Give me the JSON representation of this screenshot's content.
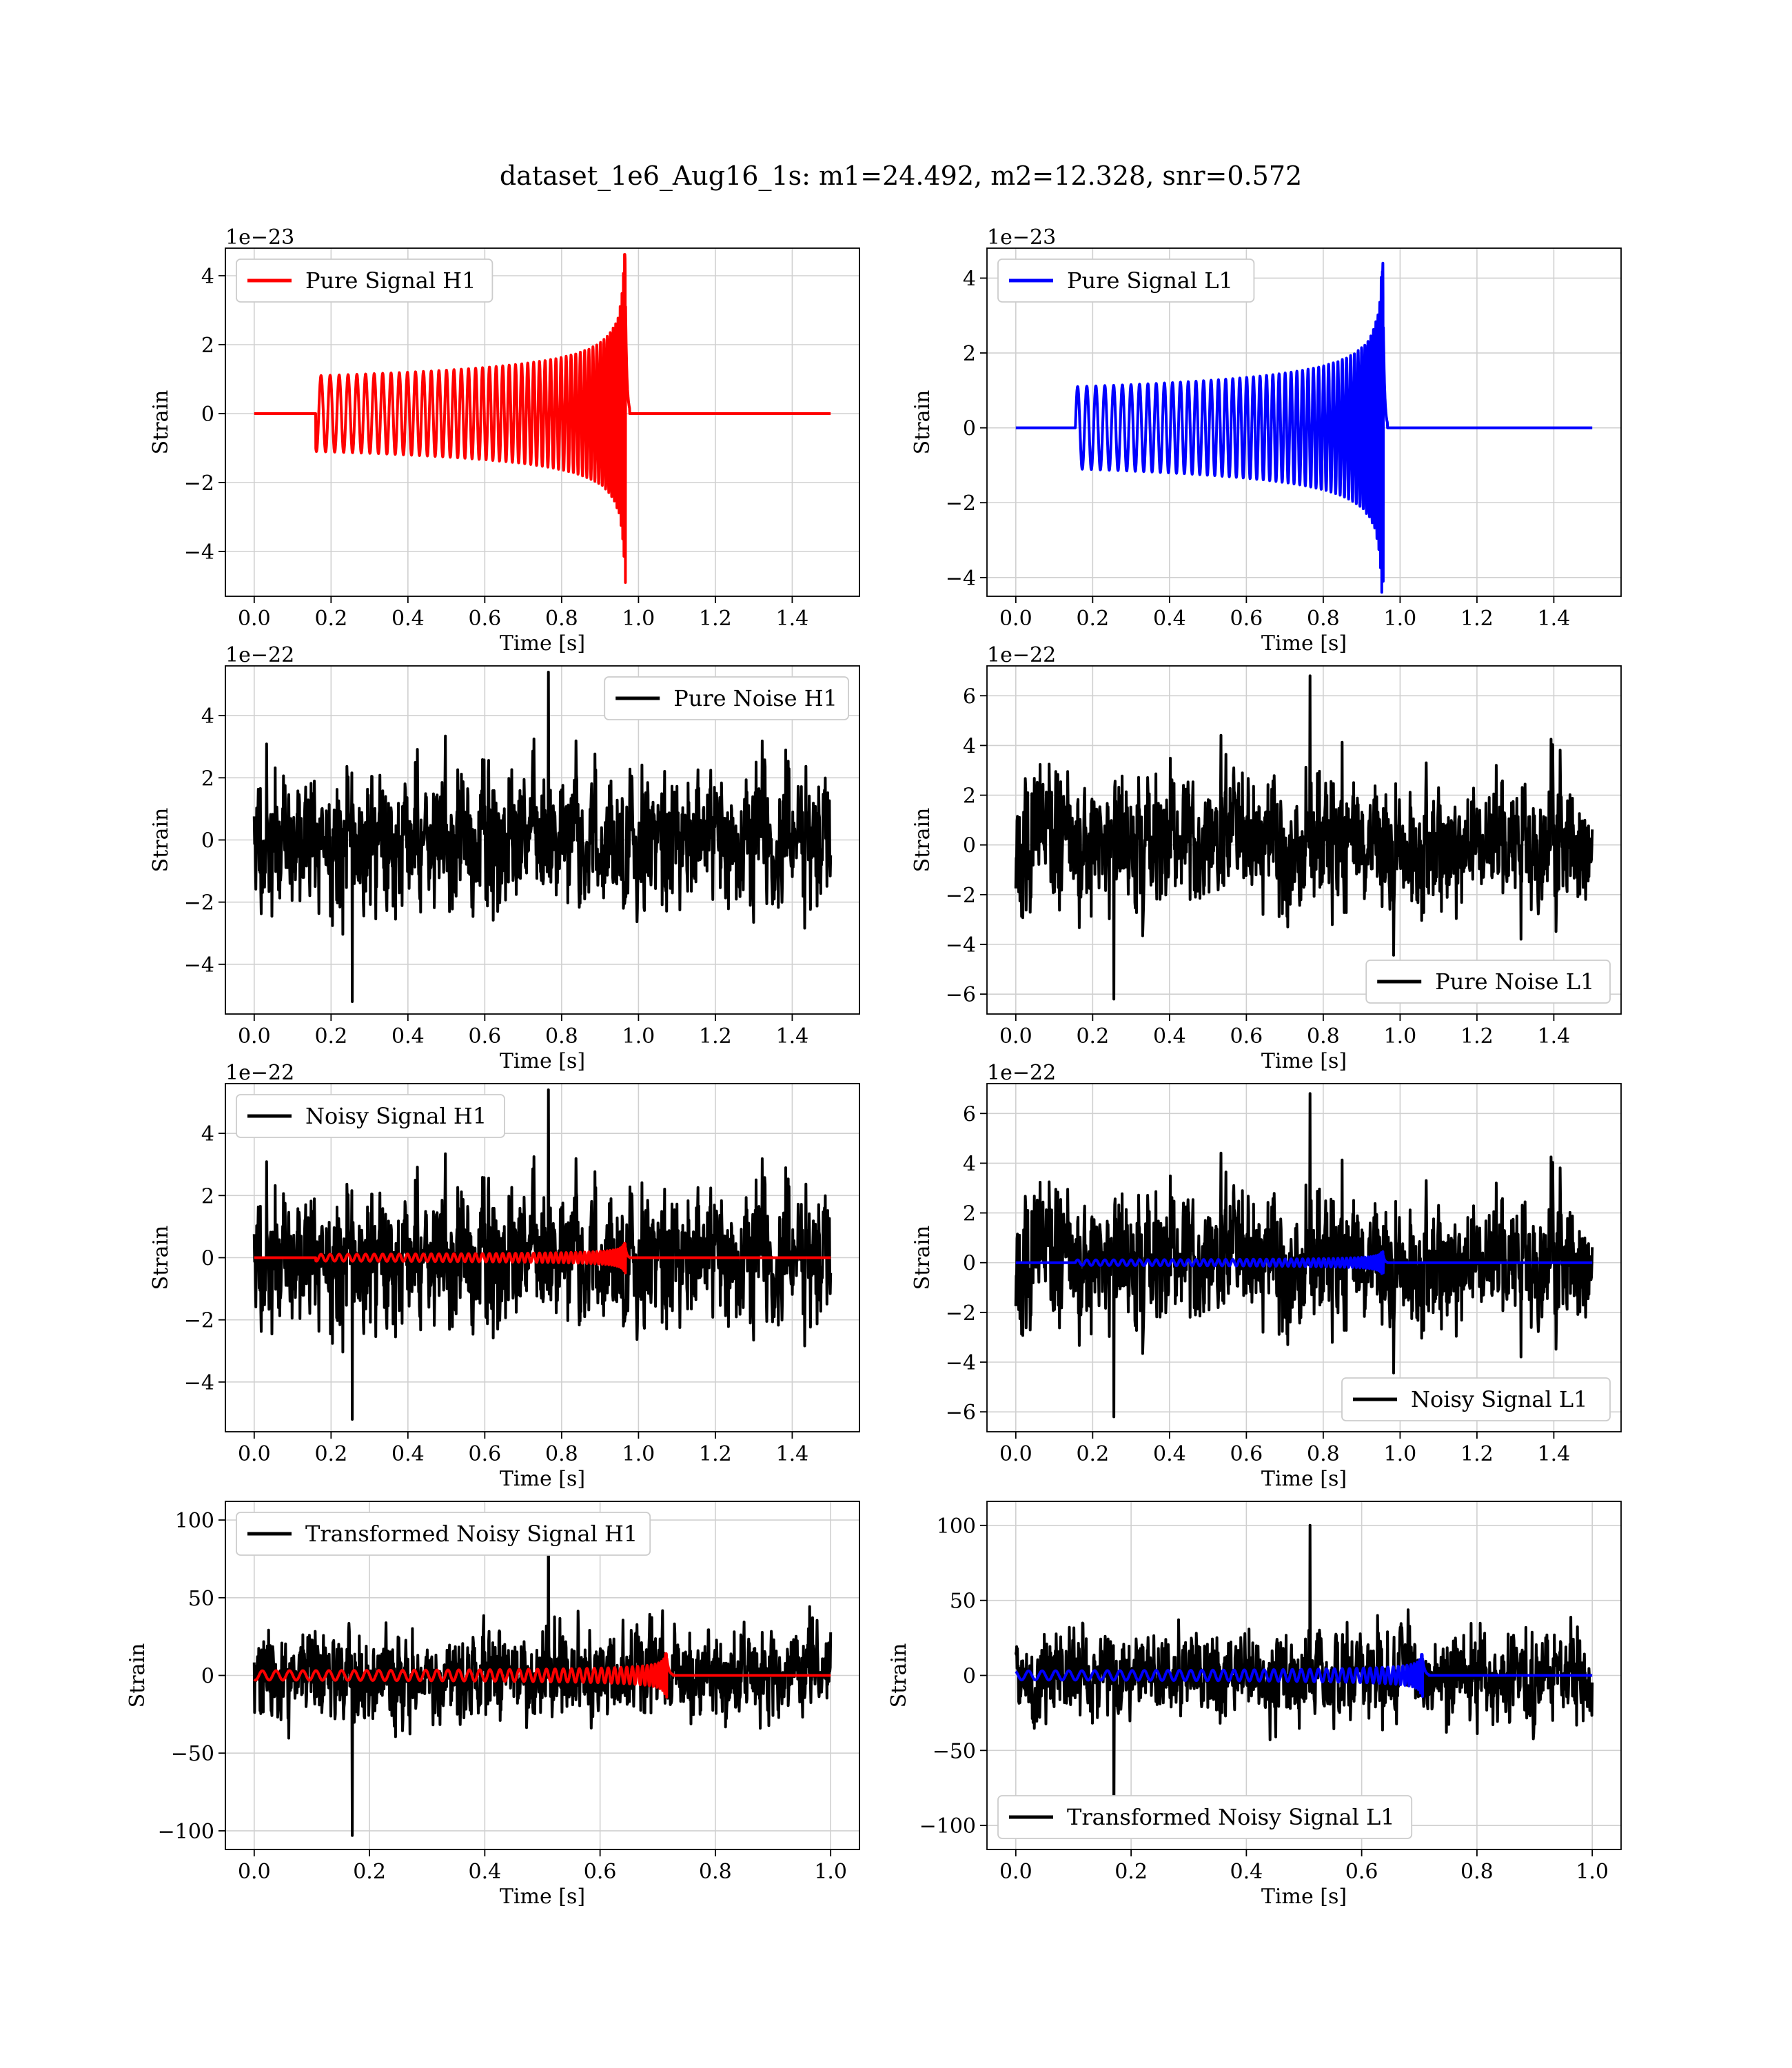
{
  "figure": {
    "title": "dataset_1e6_Aug16_1s: m1=24.492, m2=12.328, snr=0.572"
  },
  "chart_data": [
    {
      "id": "pure-signal-h1",
      "type": "line",
      "kind": "chirp",
      "xlabel": "Time [s]",
      "ylabel": "Strain",
      "offset_text": "1e−23",
      "xlim": [
        -0.075,
        1.575
      ],
      "ylim": [
        -5.3,
        4.8
      ],
      "xticks": [
        0.0,
        0.2,
        0.4,
        0.6,
        0.8,
        1.0,
        1.2,
        1.4
      ],
      "xtick_labels": [
        "0.0",
        "0.2",
        "0.4",
        "0.6",
        "0.8",
        "1.0",
        "1.2",
        "1.4"
      ],
      "yticks": [
        -4,
        -2,
        0,
        2,
        4
      ],
      "ytick_labels": [
        "−4",
        "−2",
        "0",
        "2",
        "4"
      ],
      "legend": {
        "loc": "upper-left",
        "entries": [
          {
            "label": "Pure Signal H1",
            "color": "#ff0000"
          }
        ]
      },
      "signal": {
        "color": "#ff0000",
        "t_range": [
          0.0,
          1.5
        ],
        "t_start": 0.16,
        "t_merger": 0.965,
        "amp_start": 1.1,
        "amp_peak": 4.5,
        "amp_min_peak": -4.9
      }
    },
    {
      "id": "pure-signal-l1",
      "type": "line",
      "kind": "chirp",
      "xlabel": "Time [s]",
      "ylabel": "Strain",
      "offset_text": "1e−23",
      "xlim": [
        -0.075,
        1.575
      ],
      "ylim": [
        -4.5,
        4.8
      ],
      "xticks": [
        0.0,
        0.2,
        0.4,
        0.6,
        0.8,
        1.0,
        1.2,
        1.4
      ],
      "xtick_labels": [
        "0.0",
        "0.2",
        "0.4",
        "0.6",
        "0.8",
        "1.0",
        "1.2",
        "1.4"
      ],
      "yticks": [
        -4,
        -2,
        0,
        2,
        4
      ],
      "ytick_labels": [
        "−4",
        "−2",
        "0",
        "2",
        "4"
      ],
      "legend": {
        "loc": "upper-left",
        "entries": [
          {
            "label": "Pure Signal L1",
            "color": "#0000ff"
          }
        ]
      },
      "signal": {
        "color": "#0000ff",
        "t_range": [
          0.0,
          1.5
        ],
        "t_start": 0.155,
        "t_merger": 0.955,
        "amp_start": 1.1,
        "amp_peak": 4.4,
        "amp_min_peak": -4.1
      }
    },
    {
      "id": "pure-noise-h1",
      "type": "line",
      "kind": "noise",
      "xlabel": "Time [s]",
      "ylabel": "Strain",
      "offset_text": "1e−22",
      "xlim": [
        -0.075,
        1.575
      ],
      "ylim": [
        -5.6,
        5.6
      ],
      "xticks": [
        0.0,
        0.2,
        0.4,
        0.6,
        0.8,
        1.0,
        1.2,
        1.4
      ],
      "xtick_labels": [
        "0.0",
        "0.2",
        "0.4",
        "0.6",
        "0.8",
        "1.0",
        "1.2",
        "1.4"
      ],
      "yticks": [
        -4,
        -2,
        0,
        2,
        4
      ],
      "ytick_labels": [
        "−4",
        "−2",
        "0",
        "2",
        "4"
      ],
      "legend": {
        "loc": "upper-right",
        "entries": [
          {
            "label": "Pure Noise H1",
            "color": "#000000"
          }
        ]
      },
      "noise": {
        "color": "#000000",
        "t_range": [
          0.0,
          1.5
        ],
        "amp": 2.2,
        "max": 5.4,
        "min": -5.2,
        "seed": 11
      }
    },
    {
      "id": "pure-noise-l1",
      "type": "line",
      "kind": "noise",
      "xlabel": "Time [s]",
      "ylabel": "Strain",
      "offset_text": "1e−22",
      "xlim": [
        -0.075,
        1.575
      ],
      "ylim": [
        -6.8,
        7.2
      ],
      "xticks": [
        0.0,
        0.2,
        0.4,
        0.6,
        0.8,
        1.0,
        1.2,
        1.4
      ],
      "xtick_labels": [
        "0.0",
        "0.2",
        "0.4",
        "0.6",
        "0.8",
        "1.0",
        "1.2",
        "1.4"
      ],
      "yticks": [
        -6,
        -4,
        -2,
        0,
        2,
        4,
        6
      ],
      "ytick_labels": [
        "−6",
        "−4",
        "−2",
        "0",
        "2",
        "4",
        "6"
      ],
      "legend": {
        "loc": "lower-right",
        "entries": [
          {
            "label": "Pure Noise L1",
            "color": "#000000"
          }
        ]
      },
      "noise": {
        "color": "#000000",
        "t_range": [
          0.0,
          1.5
        ],
        "amp": 2.6,
        "max": 6.8,
        "min": -6.2,
        "seed": 23
      }
    },
    {
      "id": "noisy-signal-h1",
      "type": "line",
      "kind": "noisy",
      "xlabel": "Time [s]",
      "ylabel": "Strain",
      "offset_text": "1e−22",
      "xlim": [
        -0.075,
        1.575
      ],
      "ylim": [
        -5.6,
        5.6
      ],
      "xticks": [
        0.0,
        0.2,
        0.4,
        0.6,
        0.8,
        1.0,
        1.2,
        1.4
      ],
      "xtick_labels": [
        "0.0",
        "0.2",
        "0.4",
        "0.6",
        "0.8",
        "1.0",
        "1.2",
        "1.4"
      ],
      "yticks": [
        -4,
        -2,
        0,
        2,
        4
      ],
      "ytick_labels": [
        "−4",
        "−2",
        "0",
        "2",
        "4"
      ],
      "legend": {
        "loc": "upper-left",
        "entries": [
          {
            "label": "Noisy Signal H1",
            "color": "#000000"
          }
        ]
      },
      "noise": {
        "color": "#000000",
        "t_range": [
          0.0,
          1.5
        ],
        "amp": 2.2,
        "max": 5.4,
        "min": -5.2,
        "seed": 11
      },
      "signal": {
        "color": "#ff0000",
        "t_range": [
          0.0,
          1.5
        ],
        "t_start": 0.16,
        "t_merger": 0.965,
        "amp_start": 0.11,
        "amp_peak": 0.45,
        "amp_min_peak": -0.49
      }
    },
    {
      "id": "noisy-signal-l1",
      "type": "line",
      "kind": "noisy",
      "xlabel": "Time [s]",
      "ylabel": "Strain",
      "offset_text": "1e−22",
      "xlim": [
        -0.075,
        1.575
      ],
      "ylim": [
        -6.8,
        7.2
      ],
      "xticks": [
        0.0,
        0.2,
        0.4,
        0.6,
        0.8,
        1.0,
        1.2,
        1.4
      ],
      "xtick_labels": [
        "0.0",
        "0.2",
        "0.4",
        "0.6",
        "0.8",
        "1.0",
        "1.2",
        "1.4"
      ],
      "yticks": [
        -6,
        -4,
        -2,
        0,
        2,
        4,
        6
      ],
      "ytick_labels": [
        "−6",
        "−4",
        "−2",
        "0",
        "2",
        "4",
        "6"
      ],
      "legend": {
        "loc": "lower-right",
        "entries": [
          {
            "label": "Noisy Signal L1",
            "color": "#000000"
          }
        ]
      },
      "noise": {
        "color": "#000000",
        "t_range": [
          0.0,
          1.5
        ],
        "amp": 2.6,
        "max": 6.8,
        "min": -6.2,
        "seed": 23
      },
      "signal": {
        "color": "#0000ff",
        "t_range": [
          0.0,
          1.5
        ],
        "t_start": 0.155,
        "t_merger": 0.955,
        "amp_start": 0.11,
        "amp_peak": 0.44,
        "amp_min_peak": -0.41
      }
    },
    {
      "id": "transformed-noisy-signal-h1",
      "type": "line",
      "kind": "noisy",
      "xlabel": "Time [s]",
      "ylabel": "Strain",
      "offset_text": "",
      "xlim": [
        -0.05,
        1.05
      ],
      "ylim": [
        -112,
        112
      ],
      "xticks": [
        0.0,
        0.2,
        0.4,
        0.6,
        0.8,
        1.0
      ],
      "xtick_labels": [
        "0.0",
        "0.2",
        "0.4",
        "0.6",
        "0.8",
        "1.0"
      ],
      "yticks": [
        -100,
        -50,
        0,
        50,
        100
      ],
      "ytick_labels": [
        "−100",
        "−50",
        "0",
        "50",
        "100"
      ],
      "legend": {
        "loc": "upper-left",
        "entries": [
          {
            "label": "Transformed Noisy Signal H1",
            "color": "#000000"
          }
        ]
      },
      "noise": {
        "color": "#000000",
        "t_range": [
          0.0,
          1.0
        ],
        "amp": 28,
        "max": 102,
        "min": -103,
        "seed": 37
      },
      "signal": {
        "color": "#ff0000",
        "t_range": [
          0.0,
          1.0
        ],
        "t_start": 0.0,
        "t_merger": 0.715,
        "amp_start": 3,
        "amp_peak": 14,
        "amp_min_peak": -14
      }
    },
    {
      "id": "transformed-noisy-signal-l1",
      "type": "line",
      "kind": "noisy",
      "xlabel": "Time [s]",
      "ylabel": "Strain",
      "offset_text": "",
      "xlim": [
        -0.05,
        1.05
      ],
      "ylim": [
        -116,
        116
      ],
      "xticks": [
        0.0,
        0.2,
        0.4,
        0.6,
        0.8,
        1.0
      ],
      "xtick_labels": [
        "0.0",
        "0.2",
        "0.4",
        "0.6",
        "0.8",
        "1.0"
      ],
      "yticks": [
        -100,
        -50,
        0,
        50,
        100
      ],
      "ytick_labels": [
        "−100",
        "−50",
        "0",
        "50",
        "100"
      ],
      "legend": {
        "loc": "lower-left",
        "entries": [
          {
            "label": "Transformed Noisy Signal L1",
            "color": "#000000"
          }
        ]
      },
      "noise": {
        "color": "#000000",
        "t_range": [
          0.0,
          1.0
        ],
        "amp": 28,
        "max": 100,
        "min": -101,
        "seed": 41
      },
      "signal": {
        "color": "#0000ff",
        "t_range": [
          0.0,
          1.0
        ],
        "t_start": 0.0,
        "t_merger": 0.705,
        "amp_start": 3,
        "amp_peak": 14,
        "amp_min_peak": -14
      }
    }
  ]
}
